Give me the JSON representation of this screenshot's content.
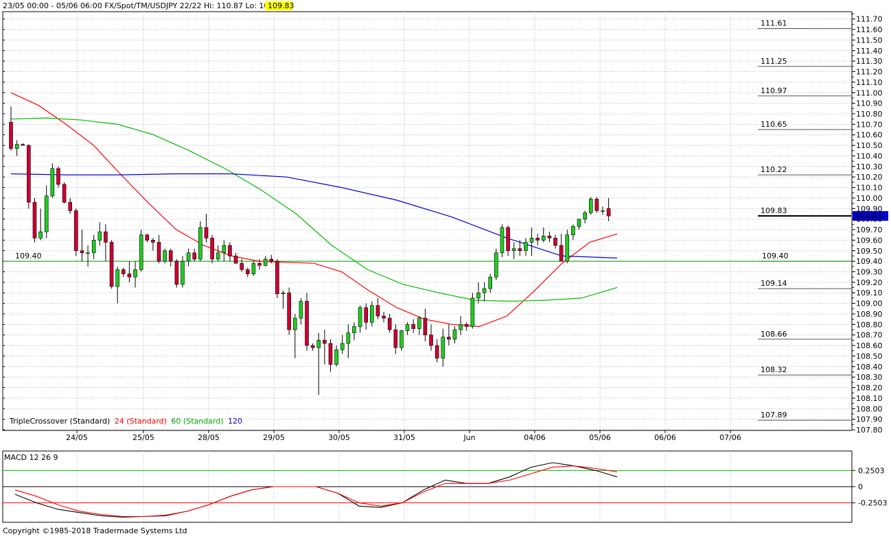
{
  "header": {
    "title": "23/05 00:00 - 05/06 06:00  FX/Spot/TM/USDJPY 22/22  Hi: 110.87  Lo: 108.13",
    "last_price": "109.83",
    "last_price_bg": "#ffff00"
  },
  "copyright": "Copyright ©1985-2018 Tradermade Systems Ltd",
  "chart_data": [
    {
      "type": "candlestick",
      "instrument": "USDJPY",
      "ylim": [
        107.8,
        111.75
      ],
      "y_ticks": [
        "107.80",
        "107.90",
        "108.00",
        "108.10",
        "108.20",
        "108.30",
        "108.40",
        "108.50",
        "108.60",
        "108.70",
        "108.80",
        "108.90",
        "109.00",
        "109.10",
        "109.20",
        "109.30",
        "109.40",
        "109.50",
        "109.60",
        "109.70",
        "109.80",
        "109.90",
        "110.00",
        "110.10",
        "110.20",
        "110.30",
        "110.40",
        "110.50",
        "110.60",
        "110.70",
        "110.80",
        "110.90",
        "111.00",
        "111.10",
        "111.20",
        "111.30",
        "111.40",
        "111.50",
        "111.60",
        "111.70"
      ],
      "x_ticks": [
        "24/05",
        "25/05",
        "28/05",
        "29/05",
        "30/05",
        "31/05",
        "Jun",
        "04/06",
        "05/06",
        "06/06",
        "07/06"
      ],
      "grid": true,
      "current_price": {
        "value": 109.83,
        "label": "109.83",
        "color": "#0000cc"
      },
      "reference_line": {
        "value": 109.4,
        "label": "109.40",
        "color": "#009900"
      },
      "levels": [
        {
          "value": 111.61,
          "label": "111.61"
        },
        {
          "value": 111.25,
          "label": "111.25"
        },
        {
          "value": 110.97,
          "label": "110.97"
        },
        {
          "value": 110.65,
          "label": "110.65"
        },
        {
          "value": 110.22,
          "label": "110.22"
        },
        {
          "value": 109.83,
          "label": "109.83"
        },
        {
          "value": 109.4,
          "label": "109.40"
        },
        {
          "value": 109.14,
          "label": "109.14"
        },
        {
          "value": 108.66,
          "label": "108.66"
        },
        {
          "value": 108.32,
          "label": "108.32"
        },
        {
          "value": 107.89,
          "label": "107.89"
        }
      ],
      "candles": [
        [
          110.72,
          110.87,
          110.45,
          110.47
        ],
        [
          110.47,
          110.55,
          110.4,
          110.51
        ],
        [
          110.51,
          110.52,
          110.5,
          110.5
        ],
        [
          110.5,
          110.51,
          109.9,
          109.96
        ],
        [
          109.96,
          110.0,
          109.58,
          109.62
        ],
        [
          109.62,
          109.9,
          109.6,
          109.68
        ],
        [
          109.68,
          110.12,
          109.62,
          110.02
        ],
        [
          110.02,
          110.33,
          110.0,
          110.28
        ],
        [
          110.28,
          110.3,
          110.1,
          110.13
        ],
        [
          110.13,
          110.15,
          109.95,
          109.96
        ],
        [
          109.96,
          110.0,
          109.85,
          109.88
        ],
        [
          109.88,
          109.9,
          109.45,
          109.5
        ],
        [
          109.5,
          109.7,
          109.4,
          109.48
        ],
        [
          109.48,
          109.55,
          109.35,
          109.48
        ],
        [
          109.48,
          109.65,
          109.42,
          109.6
        ],
        [
          109.6,
          109.77,
          109.55,
          109.68
        ],
        [
          109.68,
          109.75,
          109.4,
          109.58
        ],
        [
          109.58,
          109.6,
          109.14,
          109.16
        ],
        [
          109.16,
          109.35,
          109.0,
          109.32
        ],
        [
          109.32,
          109.34,
          109.25,
          109.28
        ],
        [
          109.28,
          109.4,
          109.2,
          109.25
        ],
        [
          109.25,
          109.4,
          109.15,
          109.32
        ],
        [
          109.32,
          109.7,
          109.3,
          109.65
        ],
        [
          109.65,
          109.66,
          109.58,
          109.6
        ],
        [
          109.6,
          109.62,
          109.5,
          109.58
        ],
        [
          109.58,
          109.65,
          109.38,
          109.4
        ],
        [
          109.4,
          109.52,
          109.38,
          109.5
        ],
        [
          109.5,
          109.52,
          109.35,
          109.4
        ],
        [
          109.4,
          109.42,
          109.15,
          109.18
        ],
        [
          109.18,
          109.45,
          109.15,
          109.4
        ],
        [
          109.4,
          109.52,
          109.35,
          109.48
        ],
        [
          109.48,
          109.52,
          109.4,
          109.42
        ],
        [
          109.42,
          109.78,
          109.4,
          109.72
        ],
        [
          109.72,
          109.85,
          109.58,
          109.62
        ],
        [
          109.62,
          109.65,
          109.38,
          109.42
        ],
        [
          109.42,
          109.55,
          109.4,
          109.48
        ],
        [
          109.48,
          109.6,
          109.4,
          109.55
        ],
        [
          109.55,
          109.58,
          109.4,
          109.45
        ],
        [
          109.45,
          109.48,
          109.38,
          109.38
        ],
        [
          109.38,
          109.42,
          109.3,
          109.32
        ],
        [
          109.32,
          109.34,
          109.25,
          109.28
        ],
        [
          109.28,
          109.4,
          109.26,
          109.38
        ],
        [
          109.38,
          109.42,
          109.32,
          109.36
        ],
        [
          109.36,
          109.45,
          109.35,
          109.42
        ],
        [
          109.42,
          109.46,
          109.38,
          109.4
        ],
        [
          109.4,
          109.42,
          109.05,
          109.09
        ],
        [
          109.09,
          109.12,
          108.95,
          109.1
        ],
        [
          109.1,
          109.15,
          108.7,
          108.75
        ],
        [
          108.75,
          108.9,
          108.48,
          108.86
        ],
        [
          108.86,
          109.05,
          108.8,
          109.02
        ],
        [
          109.02,
          109.1,
          108.55,
          108.6
        ],
        [
          108.6,
          108.62,
          108.55,
          108.58
        ],
        [
          108.58,
          108.72,
          108.13,
          108.65
        ],
        [
          108.65,
          108.75,
          108.42,
          108.62
        ],
        [
          108.62,
          108.66,
          108.35,
          108.42
        ],
        [
          108.42,
          108.6,
          108.4,
          108.56
        ],
        [
          108.56,
          108.7,
          108.52,
          108.62
        ],
        [
          108.62,
          108.8,
          108.48,
          108.72
        ],
        [
          108.72,
          108.82,
          108.65,
          108.78
        ],
        [
          108.78,
          108.98,
          108.72,
          108.96
        ],
        [
          108.96,
          109.0,
          108.75,
          108.82
        ],
        [
          108.82,
          109.02,
          108.78,
          108.98
        ],
        [
          108.98,
          109.05,
          108.85,
          108.88
        ],
        [
          108.88,
          108.92,
          108.82,
          108.86
        ],
        [
          108.86,
          108.9,
          108.72,
          108.75
        ],
        [
          108.75,
          108.8,
          108.52,
          108.58
        ],
        [
          108.58,
          108.75,
          108.55,
          108.74
        ],
        [
          108.74,
          108.82,
          108.7,
          108.8
        ],
        [
          108.8,
          108.85,
          108.72,
          108.76
        ],
        [
          108.76,
          108.88,
          108.7,
          108.86
        ],
        [
          108.86,
          108.95,
          108.64,
          108.7
        ],
        [
          108.7,
          108.8,
          108.55,
          108.6
        ],
        [
          108.6,
          108.66,
          108.44,
          108.48
        ],
        [
          108.48,
          108.76,
          108.4,
          108.68
        ],
        [
          108.68,
          108.8,
          108.6,
          108.66
        ],
        [
          108.66,
          108.78,
          108.62,
          108.75
        ],
        [
          108.75,
          108.88,
          108.7,
          108.8
        ],
        [
          108.8,
          108.82,
          108.74,
          108.78
        ],
        [
          108.78,
          109.1,
          108.76,
          109.05
        ],
        [
          109.05,
          109.2,
          109.0,
          109.1
        ],
        [
          109.1,
          109.2,
          109.02,
          109.14
        ],
        [
          109.14,
          109.28,
          109.1,
          109.25
        ],
        [
          109.25,
          109.52,
          109.22,
          109.48
        ],
        [
          109.48,
          109.75,
          109.44,
          109.72
        ],
        [
          109.72,
          109.74,
          109.45,
          109.5
        ],
        [
          109.5,
          109.58,
          109.42,
          109.52
        ],
        [
          109.52,
          109.6,
          109.45,
          109.5
        ],
        [
          109.5,
          109.62,
          109.45,
          109.58
        ],
        [
          109.58,
          109.72,
          109.45,
          109.62
        ],
        [
          109.62,
          109.66,
          109.55,
          109.6
        ],
        [
          109.6,
          109.72,
          109.58,
          109.64
        ],
        [
          109.64,
          109.68,
          109.58,
          109.62
        ],
        [
          109.62,
          109.65,
          109.52,
          109.55
        ],
        [
          109.55,
          109.66,
          109.4,
          109.4
        ],
        [
          109.4,
          109.7,
          109.38,
          109.65
        ],
        [
          109.65,
          109.75,
          109.6,
          109.73
        ],
        [
          109.73,
          109.8,
          109.7,
          109.8
        ],
        [
          109.8,
          109.88,
          109.76,
          109.86
        ],
        [
          109.86,
          110.01,
          109.84,
          109.99
        ],
        [
          109.99,
          110.01,
          109.86,
          109.88
        ],
        [
          109.88,
          109.92,
          109.84,
          109.88
        ],
        [
          109.9,
          110.0,
          109.78,
          109.83
        ]
      ],
      "series": [
        {
          "name": "24",
          "color": "#ff0000",
          "values": [
            111.0,
            110.88,
            110.7,
            110.5,
            110.22,
            109.95,
            109.7,
            109.55,
            109.45,
            109.4,
            109.39,
            109.38,
            109.3,
            109.12,
            108.96,
            108.85,
            108.8,
            108.78,
            108.88,
            109.12,
            109.38,
            109.58,
            109.66
          ]
        },
        {
          "name": "60",
          "color": "#00bb00",
          "values": [
            110.75,
            110.76,
            110.74,
            110.7,
            110.6,
            110.45,
            110.28,
            110.08,
            109.85,
            109.55,
            109.32,
            109.18,
            109.1,
            109.03,
            109.02,
            109.03,
            109.05,
            109.15
          ]
        },
        {
          "name": "120",
          "color": "#0000cc",
          "values": [
            110.23,
            110.22,
            110.22,
            110.23,
            110.23,
            110.2,
            110.1,
            109.98,
            109.82,
            109.62,
            109.45,
            109.43
          ]
        }
      ],
      "legend": {
        "prefix": "TripleCrossover (Standard)",
        "items": [
          "24 (Standard)",
          "60 (Standard)",
          "120"
        ]
      }
    },
    {
      "type": "line",
      "title": "MACD 12 26 9",
      "ylim": [
        -0.55,
        0.55
      ],
      "y_ticks": [
        "0.2503",
        "0",
        "-0.2503"
      ],
      "reference_lines": [
        {
          "value": 0.2503,
          "color": "#00bb00"
        },
        {
          "value": 0,
          "color": "#000000"
        },
        {
          "value": -0.2503,
          "color": "#ff0000"
        }
      ],
      "series": [
        {
          "name": "MACD",
          "color": "#000000",
          "values": [
            -0.12,
            -0.25,
            -0.35,
            -0.4,
            -0.45,
            -0.47,
            -0.46,
            -0.45,
            -0.38,
            -0.28,
            -0.15,
            -0.05,
            0.0,
            0.0,
            0.0,
            -0.1,
            -0.3,
            -0.32,
            -0.25,
            -0.05,
            0.1,
            0.05,
            0.05,
            0.15,
            0.3,
            0.37,
            0.32,
            0.25,
            0.15
          ]
        },
        {
          "name": "Signal",
          "color": "#ff0000",
          "values": [
            -0.05,
            -0.15,
            -0.28,
            -0.38,
            -0.43,
            -0.46,
            -0.46,
            -0.44,
            -0.38,
            -0.28,
            -0.15,
            -0.05,
            0.0,
            0.0,
            0.0,
            -0.1,
            -0.25,
            -0.3,
            -0.25,
            -0.08,
            0.05,
            0.05,
            0.05,
            0.1,
            0.2,
            0.3,
            0.32,
            0.28,
            0.23
          ]
        }
      ]
    }
  ]
}
